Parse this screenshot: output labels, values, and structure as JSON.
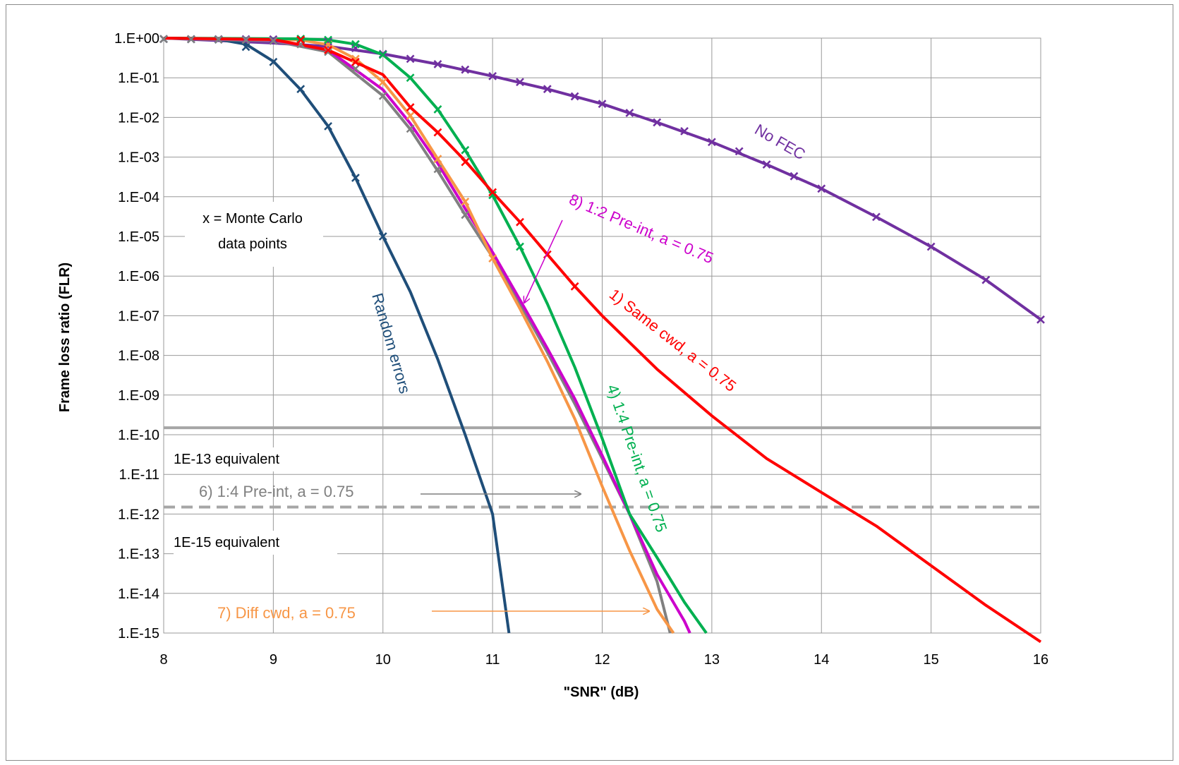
{
  "chart_data": {
    "type": "line",
    "xlabel": "\"SNR\" (dB)",
    "ylabel": "Frame loss ratio (FLR)",
    "xlim": [
      8,
      16
    ],
    "ylim_log10": [
      -15,
      0
    ],
    "x_scale": "linear",
    "y_scale": "log",
    "grid": true,
    "x_ticks": [
      "8",
      "9",
      "10",
      "11",
      "12",
      "13",
      "14",
      "15",
      "16"
    ],
    "y_ticks": [
      "1.E+00",
      "1.E-01",
      "1.E-02",
      "1.E-03",
      "1.E-04",
      "1.E-05",
      "1.E-06",
      "1.E-07",
      "1.E-08",
      "1.E-09",
      "1.E-10",
      "1.E-11",
      "1.E-12",
      "1.E-13",
      "1.E-14",
      "1.E-15"
    ],
    "series": [
      {
        "name": "Random errors",
        "color": "#1f4e79",
        "curve": [
          [
            8,
            1
          ],
          [
            8.5,
            0.93
          ],
          [
            8.75,
            0.7
          ],
          [
            9,
            0.26
          ],
          [
            9.25,
            0.05
          ],
          [
            9.5,
            0.006
          ],
          [
            9.75,
            0.0003
          ],
          [
            10,
            1e-05
          ],
          [
            10.25,
            4e-07
          ],
          [
            10.5,
            8e-09
          ],
          [
            10.75,
            1e-10
          ],
          [
            11,
            1e-12
          ],
          [
            11.15,
            1e-15
          ]
        ],
        "markers": [
          [
            8,
            0.95
          ],
          [
            8.25,
            0.94
          ],
          [
            8.5,
            0.92
          ],
          [
            8.75,
            0.6
          ],
          [
            9,
            0.25
          ],
          [
            9.25,
            0.052
          ],
          [
            9.5,
            0.006
          ],
          [
            9.75,
            0.0003
          ],
          [
            10,
            1e-05
          ]
        ]
      },
      {
        "name": "No FEC",
        "color": "#7030a0",
        "curve": [
          [
            8,
            1
          ],
          [
            9,
            0.75
          ],
          [
            9.5,
            0.62
          ],
          [
            10,
            0.4
          ],
          [
            10.5,
            0.22
          ],
          [
            11,
            0.11
          ],
          [
            11.5,
            0.052
          ],
          [
            12,
            0.022
          ],
          [
            12.5,
            0.0075
          ],
          [
            13,
            0.0024
          ],
          [
            13.5,
            0.00065
          ],
          [
            14,
            0.00016
          ],
          [
            14.5,
            3.1e-05
          ],
          [
            15,
            5.5e-06
          ],
          [
            15.5,
            8e-07
          ],
          [
            16,
            8e-08
          ]
        ],
        "markers": [
          [
            8,
            0.95
          ],
          [
            8.25,
            0.94
          ],
          [
            8.5,
            0.94
          ],
          [
            8.75,
            0.94
          ],
          [
            9,
            0.93
          ],
          [
            9.25,
            0.9
          ],
          [
            9.5,
            0.82
          ],
          [
            9.75,
            0.56
          ],
          [
            10,
            0.4
          ],
          [
            10.25,
            0.3
          ],
          [
            10.5,
            0.22
          ],
          [
            10.75,
            0.16
          ],
          [
            11,
            0.11
          ],
          [
            11.25,
            0.078
          ],
          [
            11.5,
            0.052
          ],
          [
            11.75,
            0.034
          ],
          [
            12,
            0.022
          ],
          [
            12.25,
            0.013
          ],
          [
            12.5,
            0.0075
          ],
          [
            12.75,
            0.0045
          ],
          [
            13,
            0.0024
          ],
          [
            13.25,
            0.0014
          ],
          [
            13.5,
            0.00065
          ],
          [
            13.75,
            0.00033
          ],
          [
            14,
            0.00016
          ],
          [
            14.5,
            3.1e-05
          ],
          [
            15,
            5.5e-06
          ],
          [
            15.5,
            8e-07
          ],
          [
            16,
            8e-08
          ]
        ]
      },
      {
        "name": "1) Same cwd, a = 0.75",
        "color": "#ff0000",
        "curve": [
          [
            8,
            1
          ],
          [
            9,
            0.92
          ],
          [
            9.5,
            0.5
          ],
          [
            10,
            0.12
          ],
          [
            10.25,
            0.018
          ],
          [
            10.5,
            0.0042
          ],
          [
            10.75,
            0.0008
          ],
          [
            11,
            0.00013
          ],
          [
            11.25,
            2.3e-05
          ],
          [
            11.5,
            3.5e-06
          ],
          [
            11.75,
            5.5e-07
          ],
          [
            12,
            1e-07
          ],
          [
            12.5,
            4.5e-09
          ],
          [
            13,
            3e-10
          ],
          [
            13.5,
            2.5e-11
          ],
          [
            14,
            3.5e-12
          ],
          [
            14.5,
            5e-13
          ],
          [
            15,
            5e-14
          ],
          [
            15.5,
            5e-15
          ],
          [
            16,
            6e-16
          ]
        ],
        "markers": [
          [
            9.25,
            0.9
          ],
          [
            9.5,
            0.5
          ],
          [
            9.75,
            0.25
          ],
          [
            10.25,
            0.018
          ],
          [
            10.5,
            0.0042
          ],
          [
            10.75,
            0.00075
          ],
          [
            11,
            0.00013
          ],
          [
            11.25,
            2.3e-05
          ],
          [
            11.5,
            3.5e-06
          ],
          [
            11.75,
            5.5e-07
          ]
        ]
      },
      {
        "name": "4) 1:4 Pre-int, a = 0.75",
        "color": "#00b050",
        "curve": [
          [
            8,
            1
          ],
          [
            9.25,
            0.96
          ],
          [
            9.5,
            0.9
          ],
          [
            9.75,
            0.7
          ],
          [
            10,
            0.38
          ],
          [
            10.25,
            0.1
          ],
          [
            10.5,
            0.016
          ],
          [
            10.75,
            0.0015
          ],
          [
            11,
            0.00011
          ],
          [
            11.25,
            5.5e-06
          ],
          [
            11.5,
            2e-07
          ],
          [
            11.75,
            5e-09
          ],
          [
            12,
            8e-11
          ],
          [
            12.25,
            1e-12
          ],
          [
            12.5,
            8e-14
          ],
          [
            12.75,
            6e-15
          ],
          [
            12.95,
            1e-15
          ]
        ],
        "markers": [
          [
            9.25,
            0.96
          ],
          [
            9.5,
            0.9
          ],
          [
            9.75,
            0.7
          ],
          [
            10,
            0.38
          ],
          [
            10.25,
            0.1
          ],
          [
            10.5,
            0.016
          ],
          [
            10.75,
            0.0015
          ],
          [
            11,
            0.00011
          ],
          [
            11.25,
            5.5e-06
          ]
        ]
      },
      {
        "name": "6) 1:4 Pre-int, a = 0.75",
        "color": "#808080",
        "curve": [
          [
            8,
            1
          ],
          [
            9,
            0.85
          ],
          [
            9.5,
            0.45
          ],
          [
            10,
            0.035
          ],
          [
            10.25,
            0.005
          ],
          [
            10.5,
            0.00045
          ],
          [
            10.75,
            3.5e-05
          ],
          [
            11,
            3e-06
          ],
          [
            11.25,
            2e-07
          ],
          [
            11.5,
            1.2e-08
          ],
          [
            11.75,
            6e-10
          ],
          [
            12,
            2.5e-11
          ],
          [
            12.25,
            1e-12
          ],
          [
            12.5,
            2e-14
          ],
          [
            12.62,
            1e-15
          ]
        ],
        "markers": [
          [
            8,
            0.95
          ],
          [
            8.25,
            0.94
          ],
          [
            8.5,
            0.93
          ],
          [
            8.75,
            0.9
          ],
          [
            9,
            0.85
          ],
          [
            9.25,
            0.7
          ],
          [
            9.5,
            0.45
          ],
          [
            9.75,
            0.17
          ],
          [
            10,
            0.035
          ],
          [
            10.25,
            0.0052
          ],
          [
            10.5,
            0.0005
          ],
          [
            10.75,
            3.5e-05
          ]
        ]
      },
      {
        "name": "7) Diff cwd, a = 0.75",
        "color": "#f79646",
        "curve": [
          [
            8,
            1
          ],
          [
            9.25,
            0.9
          ],
          [
            9.5,
            0.68
          ],
          [
            9.75,
            0.3
          ],
          [
            10,
            0.078
          ],
          [
            10.25,
            0.011
          ],
          [
            10.5,
            0.0009
          ],
          [
            10.75,
            7.5e-05
          ],
          [
            11,
            2.8e-06
          ],
          [
            11.25,
            1.5e-07
          ],
          [
            11.5,
            7e-09
          ],
          [
            11.75,
            2.5e-10
          ],
          [
            12,
            5e-12
          ],
          [
            12.25,
            1.2e-13
          ],
          [
            12.5,
            4e-15
          ],
          [
            12.65,
            1e-15
          ]
        ],
        "markers": [
          [
            9.5,
            0.68
          ],
          [
            9.75,
            0.3
          ],
          [
            10,
            0.078
          ],
          [
            10.25,
            0.011
          ],
          [
            10.5,
            0.0009
          ],
          [
            10.75,
            7.5e-05
          ],
          [
            11,
            2.8e-06
          ]
        ]
      },
      {
        "name": "8) 1:2 Pre-int, a = 0.75",
        "color": "#cc00cc",
        "curve": [
          [
            8,
            1
          ],
          [
            9,
            0.9
          ],
          [
            9.5,
            0.5
          ],
          [
            10,
            0.05
          ],
          [
            10.25,
            0.007
          ],
          [
            10.5,
            0.0007
          ],
          [
            10.75,
            5e-05
          ],
          [
            11,
            4e-06
          ],
          [
            11.25,
            2.5e-07
          ],
          [
            11.5,
            1.5e-08
          ],
          [
            11.75,
            8e-10
          ],
          [
            12,
            3e-11
          ],
          [
            12.25,
            1e-12
          ],
          [
            12.5,
            3e-14
          ],
          [
            12.75,
            2e-15
          ],
          [
            12.8,
            1e-15
          ]
        ],
        "markers": []
      }
    ],
    "reference_lines": [
      {
        "label": "1E-13 equivalent",
        "y": 1.5e-10,
        "style": "solid",
        "color": "#a6a6a6"
      },
      {
        "label": "1E-15 equivalent",
        "y": 1.5e-12,
        "style": "dashed",
        "color": "#a6a6a6"
      }
    ],
    "annotations": [
      {
        "text": "x = Monte Carlo",
        "color": "#000000"
      },
      {
        "text": "data points",
        "color": "#000000"
      },
      {
        "text": "Random errors",
        "color": "#1f4e79"
      },
      {
        "text": "No FEC",
        "color": "#7030a0"
      },
      {
        "text": "8) 1:2 Pre-int, a = 0.75",
        "color": "#cc00cc"
      },
      {
        "text": "1) Same cwd, a = 0.75",
        "color": "#ff0000"
      },
      {
        "text": "4) 1:4 Pre-int, a = 0.75",
        "color": "#00b050"
      },
      {
        "text": "6) 1:4 Pre-int, a = 0.75",
        "color": "#808080"
      },
      {
        "text": "7) Diff cwd, a = 0.75",
        "color": "#f79646"
      },
      {
        "text": "1E-13 equivalent",
        "color": "#000000"
      },
      {
        "text": "1E-15 equivalent",
        "color": "#000000"
      }
    ]
  }
}
